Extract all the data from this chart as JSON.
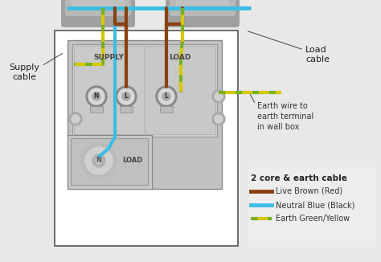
{
  "bg_color": "#e8e8e8",
  "white": "#ffffff",
  "brown": "#8B4010",
  "blue": "#3bbde4",
  "gy_green": "#7ab020",
  "gy_yellow": "#d4c800",
  "box_outline": "#555555",
  "box_fill": "#ffffff",
  "device_fill": "#c2c2c2",
  "device_dark": "#aaaaaa",
  "device_mid": "#b8b8b8",
  "terminal_dark": "#888888",
  "terminal_light": "#d0d0d0",
  "cable_gray": "#a0a0a0",
  "cable_light": "#c8c8c8",
  "supply_text": "SUPPLY",
  "load_text_upper": "LOAD",
  "load_text_lower": "LOAD",
  "n_label": "N",
  "l_label": "L",
  "supply_cable_label": "Supply\ncable",
  "load_cable_label": "Load\ncable",
  "earth_annotation": "Earth wire to\nearth terminal\nin wall box",
  "legend_title": "2 core & earth cable",
  "legend_items": [
    {
      "label": "Live Brown (Red)",
      "color": "#8B4010"
    },
    {
      "label": "Neutral Blue (Black)",
      "color": "#3bbde4"
    },
    {
      "label": "Earth Green/Yellow",
      "color": "#7ab020"
    }
  ]
}
